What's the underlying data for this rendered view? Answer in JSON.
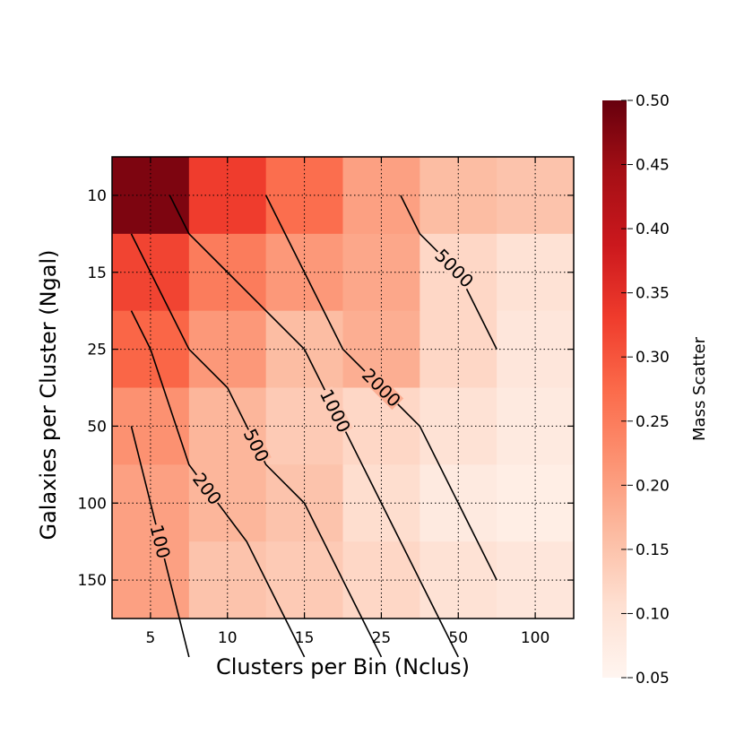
{
  "chart_data": {
    "type": "heatmap",
    "title": "",
    "xlabel": "Clusters per Bin (Nclus)",
    "ylabel": "Galaxies per Cluster (Ngal)",
    "x_ticks": [
      "5",
      "10",
      "15",
      "25",
      "50",
      "100"
    ],
    "y_ticks": [
      "10",
      "15",
      "25",
      "50",
      "100",
      "150"
    ],
    "colorbar": {
      "label": "Mass Scatter",
      "min": 0.05,
      "max": 0.5,
      "ticks": [
        "0.50",
        "0.45",
        "0.40",
        "0.35",
        "0.30",
        "0.25",
        "0.20",
        "0.15",
        "0.10",
        "0.05"
      ],
      "colormap": "Reds",
      "colors": [
        "#fff5f0",
        "#fee0d2",
        "#fcbba1",
        "#fc9272",
        "#fb6a4a",
        "#ef3b2c",
        "#cb181d",
        "#a50f15",
        "#67000d"
      ]
    },
    "grid": true,
    "columns": 12,
    "rows": 6,
    "values": [
      [
        0.48,
        0.48,
        0.33,
        0.33,
        0.27,
        0.27,
        0.2,
        0.2,
        0.16,
        0.16,
        0.15,
        0.15
      ],
      [
        0.32,
        0.32,
        0.25,
        0.25,
        0.21,
        0.21,
        0.19,
        0.19,
        0.12,
        0.12,
        0.1,
        0.1
      ],
      [
        0.28,
        0.28,
        0.21,
        0.21,
        0.16,
        0.16,
        0.18,
        0.18,
        0.12,
        0.12,
        0.09,
        0.09
      ],
      [
        0.22,
        0.22,
        0.17,
        0.17,
        0.14,
        0.14,
        0.12,
        0.12,
        0.1,
        0.1,
        0.08,
        0.08
      ],
      [
        0.2,
        0.2,
        0.17,
        0.17,
        0.15,
        0.15,
        0.11,
        0.11,
        0.08,
        0.08,
        0.07,
        0.07
      ],
      [
        0.2,
        0.2,
        0.15,
        0.15,
        0.14,
        0.14,
        0.12,
        0.12,
        0.1,
        0.1,
        0.09,
        0.09
      ]
    ],
    "contours": [
      {
        "label": "100",
        "points": [
          [
            0.5,
            3.5
          ],
          [
            1.0,
            4.5
          ],
          [
            2.0,
            6.5
          ]
        ]
      },
      {
        "label": "200",
        "points": [
          [
            0.5,
            2.0
          ],
          [
            1.0,
            2.5
          ],
          [
            2.0,
            4.0
          ],
          [
            3.5,
            5.0
          ],
          [
            4.0,
            5.5
          ],
          [
            5.0,
            6.5
          ]
        ]
      },
      {
        "label": "500",
        "points": [
          [
            0.5,
            1.0
          ],
          [
            1.0,
            1.5
          ],
          [
            2.0,
            2.5
          ],
          [
            3.0,
            3.0
          ],
          [
            4.0,
            4.0
          ],
          [
            5.0,
            4.5
          ],
          [
            6.0,
            5.5
          ],
          [
            7.0,
            6.5
          ]
        ]
      },
      {
        "label": "1000",
        "points": [
          [
            1.5,
            0.5
          ],
          [
            2.0,
            1.0
          ],
          [
            3.0,
            1.5
          ],
          [
            4.0,
            2.0
          ],
          [
            5.0,
            2.5
          ],
          [
            6.0,
            3.5
          ],
          [
            7.0,
            4.5
          ],
          [
            8.0,
            5.5
          ],
          [
            9.0,
            6.5
          ]
        ]
      },
      {
        "label": "2000",
        "points": [
          [
            4.0,
            0.5
          ],
          [
            4.5,
            1.0
          ],
          [
            5.0,
            1.5
          ],
          [
            5.5,
            2.0
          ],
          [
            6.0,
            2.5
          ],
          [
            7.0,
            3.0
          ],
          [
            8.0,
            3.5
          ],
          [
            9.0,
            4.5
          ],
          [
            10.0,
            5.5
          ]
        ]
      },
      {
        "label": "5000",
        "points": [
          [
            7.5,
            0.5
          ],
          [
            8.0,
            1.0
          ],
          [
            9.0,
            1.5
          ],
          [
            10.0,
            2.5
          ]
        ]
      }
    ]
  }
}
